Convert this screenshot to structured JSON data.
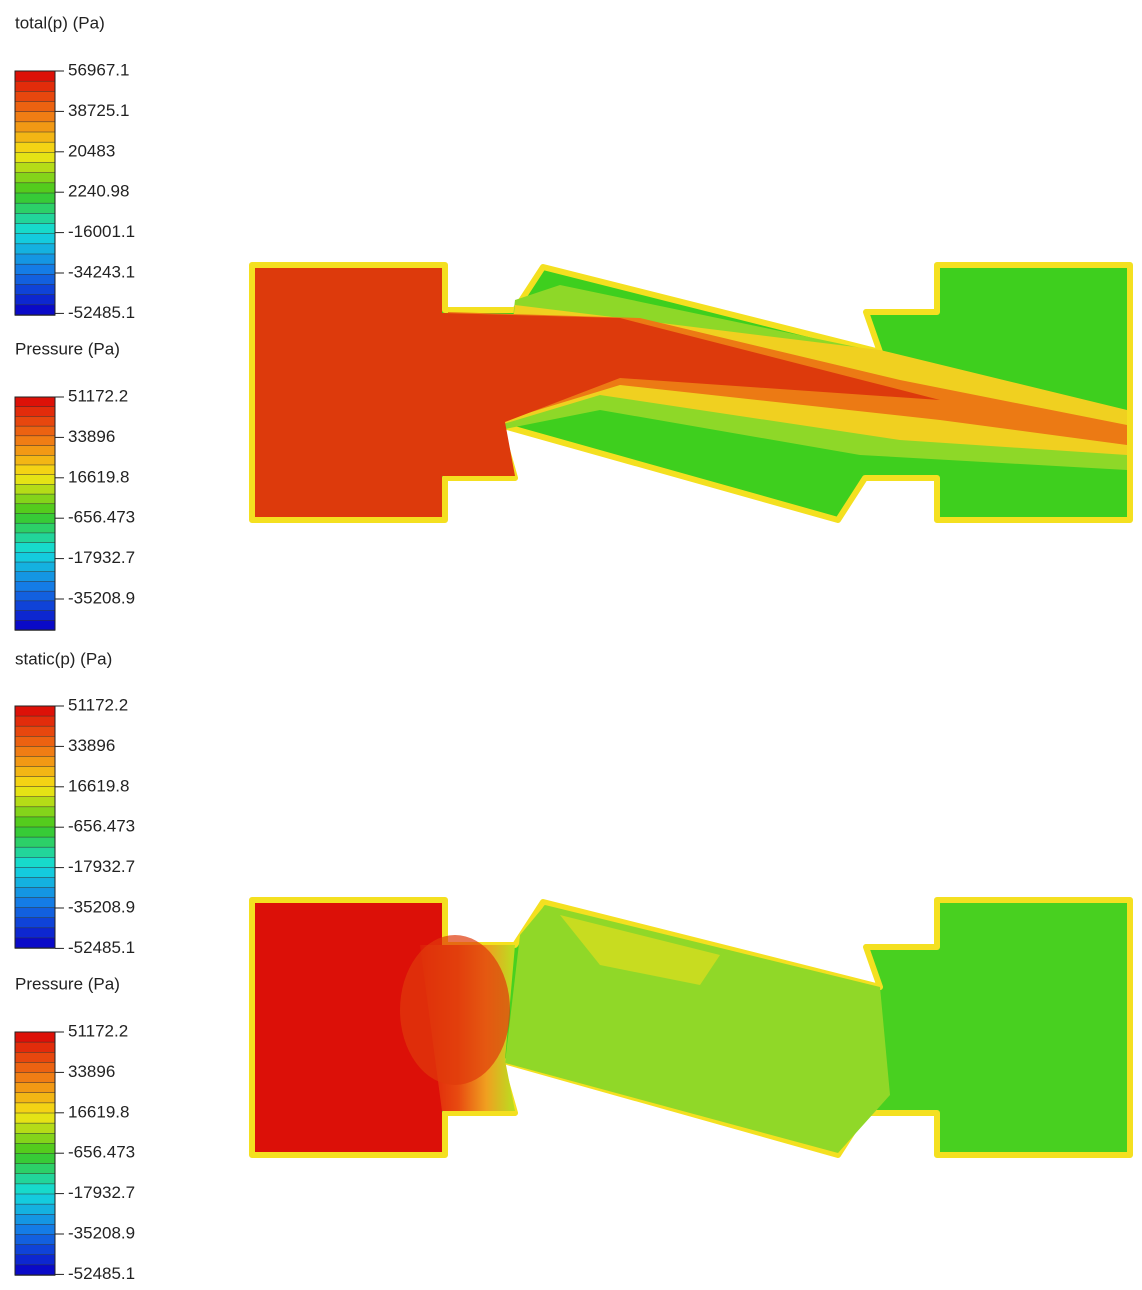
{
  "legends": [
    {
      "title": "total(p) (Pa)",
      "labels": [
        "56967.1",
        "38725.1",
        "20483",
        "2240.98",
        "-16001.1",
        "-34243.1",
        "-52485.1"
      ]
    },
    {
      "title": "Pressure (Pa)",
      "labels": [
        "51172.2",
        "33896",
        "16619.8",
        "-656.473",
        "-17932.7",
        "-35208.9"
      ]
    },
    {
      "title": "static(p) (Pa)",
      "labels": [
        "51172.2",
        "33896",
        "16619.8",
        "-656.473",
        "-17932.7",
        "-35208.9",
        "-52485.1"
      ]
    },
    {
      "title": "Pressure (Pa)",
      "labels": [
        "51172.2",
        "33896",
        "16619.8",
        "-656.473",
        "-17932.7",
        "-35208.9",
        "-52485.1"
      ]
    }
  ]
}
